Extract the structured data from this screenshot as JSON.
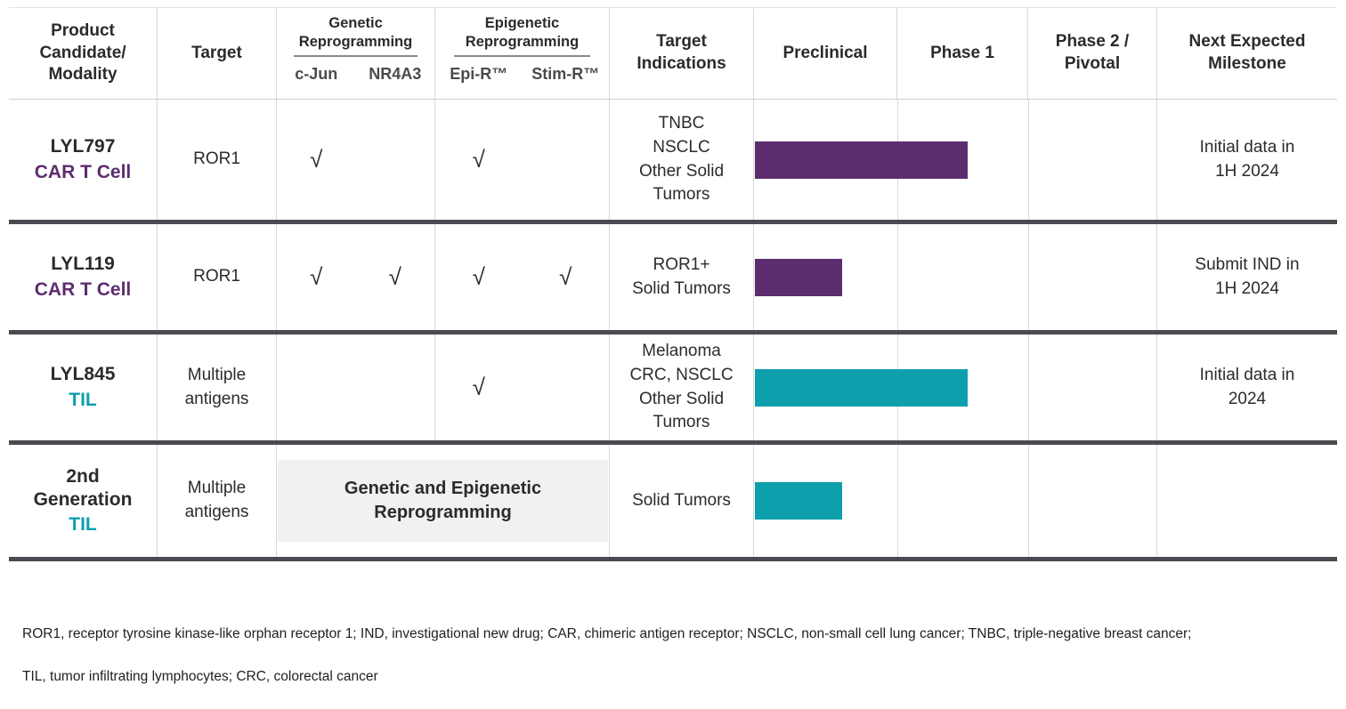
{
  "colors": {
    "purple": "#5C2D6E",
    "teal": "#0E9FAD",
    "row_divider": "#4A4B50",
    "grid_line": "#D8D8D8",
    "text": "#2B2B2B",
    "subheader_text": "#4A4A4A",
    "combined_box_bg": "#F1F1F1"
  },
  "table": {
    "headers": {
      "product": "Product\nCandidate/\nModality",
      "target": "Target",
      "genetic_group": "Genetic\nReprogramming",
      "genetic_subs": [
        "c-Jun",
        "NR4A3"
      ],
      "epigenetic_group": "Epigenetic\nReprogramming",
      "epigenetic_subs": [
        "Epi-R™",
        "Stim-R™"
      ],
      "indications": "Target\nIndications",
      "phases": [
        "Preclinical",
        "Phase 1",
        "Phase 2 /\nPivotal"
      ],
      "milestone": "Next Expected\nMilestone"
    },
    "rows": [
      {
        "name": "LYL797",
        "modality": "CAR T Cell",
        "modality_color": "#5C2D6E",
        "target": "ROR1",
        "checks": {
          "cjun": "√",
          "nr4a3": "",
          "epir": "√",
          "stimr": ""
        },
        "indications": "TNBC\nNSCLC\nOther Solid\nTumors",
        "bar": {
          "color": "#5C2D6E",
          "width": "52.8%"
        },
        "milestone": "Initial data in\n1H 2024"
      },
      {
        "name": "LYL119",
        "modality": "CAR T Cell",
        "modality_color": "#5C2D6E",
        "target": "ROR1",
        "checks": {
          "cjun": "√",
          "nr4a3": "√",
          "epir": "√",
          "stimr": "√"
        },
        "indications": "ROR1+\nSolid Tumors",
        "bar": {
          "color": "#5C2D6E",
          "width": "21.6%"
        },
        "milestone": "Submit IND in\n1H 2024"
      },
      {
        "name": "LYL845",
        "modality": "TIL",
        "modality_color": "#0E9FAD",
        "target": "Multiple\nantigens",
        "checks": {
          "cjun": "",
          "nr4a3": "",
          "epir": "√",
          "stimr": ""
        },
        "indications": "Melanoma\nCRC, NSCLC\nOther Solid\nTumors",
        "bar": {
          "color": "#0E9FAD",
          "width": "52.8%"
        },
        "milestone": "Initial data in\n2024"
      },
      {
        "name": "2nd\nGeneration",
        "modality": "TIL",
        "modality_color": "#0E9FAD",
        "target": "Multiple\nantigens",
        "combined_reprogramming": "Genetic and Epigenetic\nReprogramming",
        "indications": "Solid Tumors",
        "bar": {
          "color": "#0E9FAD",
          "width": "21.6%"
        },
        "milestone": ""
      }
    ]
  },
  "footnote": {
    "line1": "ROR1, receptor tyrosine kinase-like orphan receptor 1; IND,  investigational new drug; CAR, chimeric antigen receptor; NSCLC, non-small cell lung cancer; TNBC, triple-negative breast cancer;",
    "line2": "TIL, tumor infiltrating lymphocytes; CRC, colorectal cancer"
  },
  "chart_data": {
    "type": "table",
    "title": "Product candidate pipeline",
    "stage_axis": [
      "Preclinical",
      "Phase 1",
      "Phase 2 / Pivotal"
    ],
    "legend": "bar length = development progress across stage columns (in stage units, 0–3)",
    "rows": [
      {
        "product": "LYL797",
        "modality": "CAR T Cell",
        "target": "ROR1",
        "c_jun": true,
        "nr4a3": false,
        "epi_r": true,
        "stim_r": false,
        "indications": [
          "TNBC",
          "NSCLC",
          "Other Solid Tumors"
        ],
        "stage_progress": 1.55,
        "milestone": "Initial data in 1H 2024",
        "bar_color": "#5C2D6E"
      },
      {
        "product": "LYL119",
        "modality": "CAR T Cell",
        "target": "ROR1",
        "c_jun": true,
        "nr4a3": true,
        "epi_r": true,
        "stim_r": true,
        "indications": [
          "ROR1+ Solid Tumors"
        ],
        "stage_progress": 0.65,
        "milestone": "Submit IND in 1H 2024",
        "bar_color": "#5C2D6E"
      },
      {
        "product": "LYL845",
        "modality": "TIL",
        "target": "Multiple antigens",
        "c_jun": false,
        "nr4a3": false,
        "epi_r": true,
        "stim_r": false,
        "indications": [
          "Melanoma",
          "CRC, NSCLC",
          "Other Solid Tumors"
        ],
        "stage_progress": 1.55,
        "milestone": "Initial data in 2024",
        "bar_color": "#0E9FAD"
      },
      {
        "product": "2nd Generation TIL",
        "modality": "TIL",
        "target": "Multiple antigens",
        "reprogramming": "Genetic and Epigenetic Reprogramming",
        "indications": [
          "Solid Tumors"
        ],
        "stage_progress": 0.65,
        "milestone": "",
        "bar_color": "#0E9FAD"
      }
    ]
  }
}
